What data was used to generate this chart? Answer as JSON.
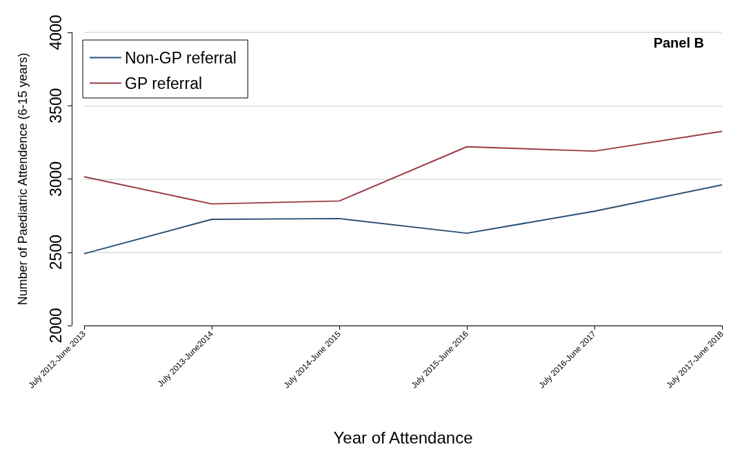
{
  "chart_data": {
    "type": "line",
    "xlabel": "Year of Attendance",
    "ylabel": "Number of Paediatric Attendence (6-15 years)",
    "categories": [
      "July 2012-June 2013",
      "July 2013-June2014",
      "July 2014-June 2015",
      "July 2015-June 2016",
      "July 2016-June 2017",
      "July 2017-June 2018"
    ],
    "series": [
      {
        "name": "Non-GP referral",
        "color": "#2b4f72",
        "values": [
          2490,
          2725,
          2730,
          2630,
          2780,
          2960
        ]
      },
      {
        "name": "GP referral",
        "color": "#9c3a44",
        "values": [
          3015,
          2830,
          2850,
          3220,
          3190,
          3325
        ]
      }
    ],
    "ylim": [
      2000,
      4000
    ],
    "yticks": [
      2000,
      2500,
      3000,
      3500,
      4000
    ],
    "grid": "y",
    "legend": "top left",
    "marker": "none",
    "line_style": "solid",
    "annotations": [
      "Panel B"
    ]
  }
}
